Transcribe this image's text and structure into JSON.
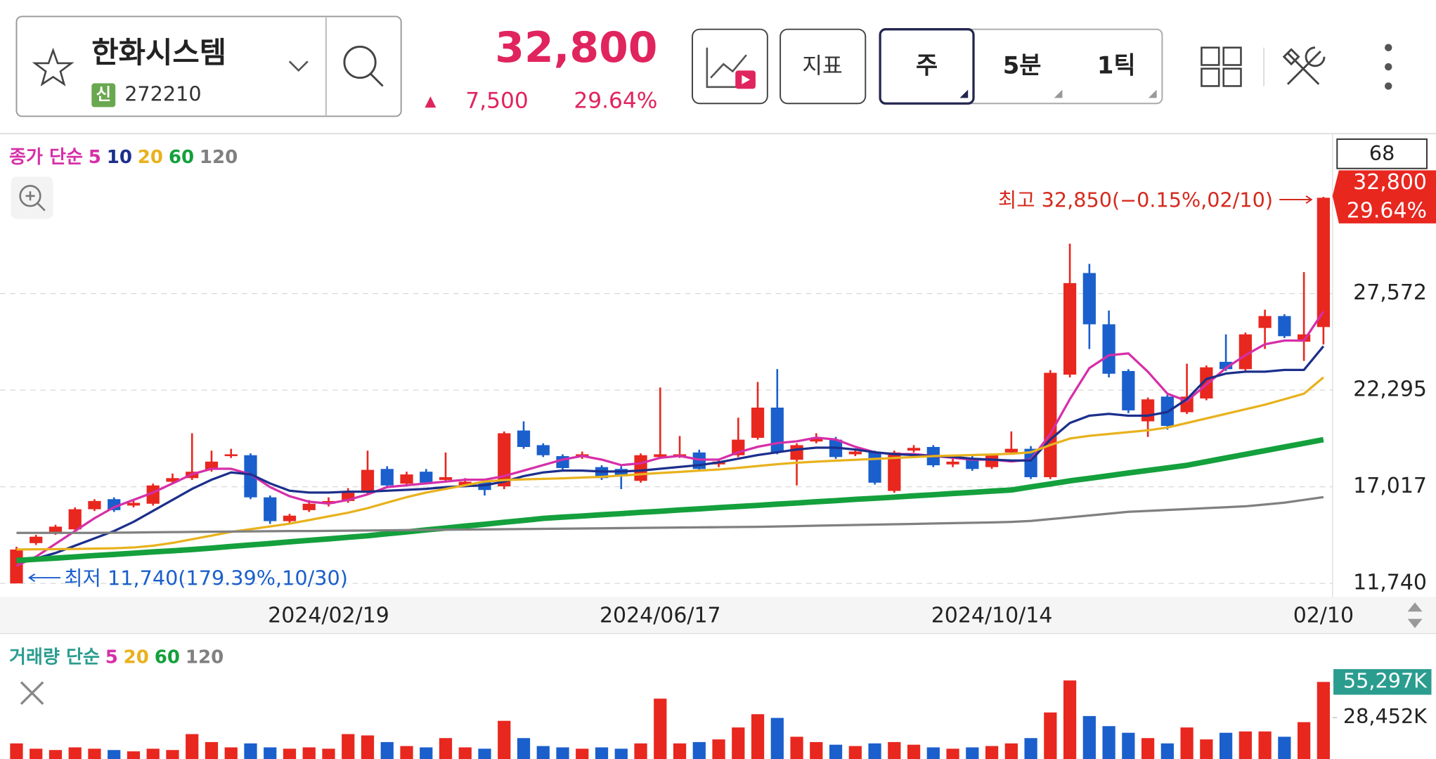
{
  "header": {
    "stock_name": "한화시스템",
    "badge": "신",
    "code": "272210",
    "price": "32,800",
    "change_sign": "▲",
    "change": "7,500",
    "change_pct": "29.64%",
    "buttons": {
      "indicator": "지표",
      "week": "주",
      "min5": "5분",
      "tick1": "1틱"
    }
  },
  "chart_data": [
    {
      "type": "candlestick",
      "legend_title": "종가 단순",
      "count_label": 68,
      "annotations": {
        "high": "최고 32,850(−0.15%,02/10)",
        "low": "최저 11,740(179.39%,10/30)",
        "last_price": "32,800",
        "last_pct": "29.64%"
      },
      "up_color": "#e8271f",
      "down_color": "#1a5fcc",
      "categories": [
        null,
        null,
        null,
        null,
        null,
        null,
        null,
        null,
        null,
        null,
        null,
        null,
        null,
        null,
        null,
        null,
        "2024/02/19",
        null,
        null,
        null,
        null,
        null,
        null,
        null,
        null,
        null,
        null,
        null,
        null,
        null,
        null,
        null,
        null,
        "2024/06/17",
        null,
        null,
        null,
        null,
        null,
        null,
        null,
        null,
        null,
        null,
        null,
        null,
        null,
        null,
        null,
        null,
        "2024/10/14",
        null,
        null,
        null,
        null,
        null,
        null,
        null,
        null,
        null,
        null,
        null,
        null,
        null,
        null,
        null,
        null,
        "02/10"
      ],
      "open": [
        11740,
        13940,
        14490,
        14690,
        15790,
        16340,
        15990,
        16090,
        17290,
        17490,
        17940,
        18690,
        18740,
        16440,
        15140,
        15740,
        16090,
        16240,
        16690,
        17990,
        17190,
        17840,
        17390,
        17090,
        17290,
        17040,
        20090,
        19290,
        18690,
        18640,
        18090,
        17990,
        17340,
        18640,
        18690,
        18890,
        18240,
        18740,
        19690,
        21340,
        18490,
        19490,
        19590,
        18790,
        18890,
        16790,
        18990,
        19190,
        18240,
        18590,
        18090,
        18890,
        19090,
        17540,
        23140,
        28690,
        25890,
        23340,
        20590,
        21940,
        21090,
        21840,
        23840,
        23440,
        25690,
        26340,
        24940,
        25740
      ],
      "high": [
        13740,
        14390,
        14940,
        15890,
        16340,
        16440,
        16240,
        17190,
        17740,
        19940,
        18990,
        19090,
        18840,
        16540,
        15540,
        16290,
        16440,
        16940,
        18990,
        18140,
        17840,
        17990,
        18890,
        17490,
        17390,
        20040,
        20590,
        19390,
        18790,
        18940,
        18190,
        18140,
        18840,
        22440,
        19790,
        19040,
        18540,
        20790,
        22740,
        23440,
        19390,
        19940,
        19740,
        19090,
        18990,
        18990,
        19290,
        19290,
        18540,
        18690,
        18840,
        20040,
        19240,
        23390,
        30290,
        29190,
        26640,
        23440,
        21890,
        22040,
        23740,
        23640,
        25340,
        25440,
        26690,
        26440,
        28740,
        32850
      ],
      "low": [
        11740,
        13840,
        14390,
        14490,
        15690,
        15640,
        15890,
        15990,
        17190,
        17390,
        17840,
        18590,
        16340,
        14990,
        14990,
        15640,
        15940,
        16140,
        16590,
        16940,
        17090,
        17140,
        17240,
        16990,
        16540,
        16890,
        19090,
        18640,
        17940,
        18540,
        17390,
        16890,
        17240,
        18540,
        18590,
        17890,
        18090,
        18640,
        19590,
        18790,
        17090,
        19390,
        18540,
        18690,
        17140,
        16690,
        18890,
        18090,
        18090,
        17890,
        17990,
        18790,
        17440,
        17440,
        22990,
        24540,
        22990,
        21040,
        19740,
        20140,
        20990,
        21740,
        23340,
        23240,
        24540,
        25140,
        23890,
        24790
      ],
      "close": [
        13590,
        14290,
        14840,
        15790,
        16240,
        15740,
        16140,
        17090,
        17490,
        17840,
        18390,
        18790,
        16440,
        15140,
        15440,
        16090,
        16240,
        16690,
        17940,
        17090,
        17690,
        17240,
        17540,
        17290,
        16840,
        19940,
        19190,
        18740,
        18040,
        18790,
        17490,
        17590,
        18740,
        18790,
        18790,
        17990,
        18390,
        19590,
        21340,
        18890,
        19290,
        19690,
        18640,
        18940,
        17240,
        18890,
        19140,
        18190,
        18390,
        17990,
        18740,
        19090,
        17540,
        23240,
        28140,
        25890,
        23190,
        21190,
        21790,
        20340,
        21940,
        23540,
        23440,
        25340,
        26340,
        25240,
        25340,
        32800
      ],
      "ylim": [
        11000,
        36100
      ],
      "yticks": [
        {
          "value": 11740,
          "label": "11,740"
        },
        {
          "value": 17017,
          "label": "17,017"
        },
        {
          "value": 22295,
          "label": "22,295"
        },
        {
          "value": 27572,
          "label": "27,572"
        }
      ],
      "grid": true,
      "series": [
        {
          "name": "5",
          "color": "#d62fa8",
          "width": 2.5,
          "values": [
            12700,
            13200,
            13900,
            14600,
            15300,
            15900,
            16300,
            16700,
            17200,
            17700,
            18000,
            18000,
            17700,
            17000,
            16500,
            16200,
            16100,
            16300,
            16600,
            17000,
            17100,
            17200,
            17300,
            17400,
            17400,
            17600,
            17900,
            18200,
            18500,
            18700,
            18500,
            18200,
            18300,
            18600,
            18700,
            18500,
            18500,
            18900,
            19200,
            19400,
            19500,
            19700,
            19600,
            19200,
            18900,
            18800,
            18800,
            18700,
            18600,
            18500,
            18500,
            18400,
            18500,
            19900,
            21800,
            23500,
            24200,
            24300,
            23300,
            22100,
            21700,
            22600,
            23500,
            24200,
            24800,
            25000,
            25000,
            26590
          ]
        },
        {
          "name": "10",
          "color": "#1c2f8c",
          "width": 2.5,
          "values": [
            13000,
            13100,
            13400,
            13800,
            14200,
            14600,
            15100,
            15700,
            16300,
            16900,
            17400,
            17800,
            17700,
            17200,
            16800,
            16700,
            16700,
            16750,
            16750,
            16800,
            16850,
            16900,
            17000,
            17050,
            17100,
            17300,
            17600,
            17800,
            17900,
            17900,
            17850,
            17850,
            17900,
            18000,
            18100,
            18200,
            18350,
            18550,
            18750,
            18900,
            19050,
            19150,
            19150,
            19050,
            18900,
            18800,
            18750,
            18700,
            18650,
            18550,
            18500,
            18450,
            18450,
            19600,
            20500,
            20900,
            21000,
            20900,
            20900,
            21100,
            21800,
            22900,
            23200,
            23300,
            23300,
            23400,
            23400,
            24690
          ]
        },
        {
          "name": "20",
          "color": "#e8b21e",
          "width": 2.5,
          "values": [
            13590,
            13600,
            13610,
            13620,
            13640,
            13660,
            13700,
            13800,
            13950,
            14150,
            14350,
            14550,
            14700,
            14850,
            15000,
            15200,
            15400,
            15600,
            15850,
            16150,
            16450,
            16700,
            16900,
            17100,
            17300,
            17380,
            17420,
            17450,
            17480,
            17520,
            17560,
            17630,
            17700,
            17770,
            17830,
            17900,
            17960,
            18050,
            18150,
            18250,
            18330,
            18390,
            18440,
            18490,
            18540,
            18590,
            18640,
            18690,
            18720,
            18750,
            18780,
            18820,
            18900,
            19300,
            19650,
            19800,
            19900,
            20000,
            20100,
            20250,
            20500,
            20750,
            21000,
            21250,
            21500,
            21800,
            22100,
            22990
          ]
        },
        {
          "name": "60",
          "color": "#14a03c",
          "width": 6,
          "values": [
            12990,
            13060,
            13120,
            13190,
            13260,
            13320,
            13390,
            13460,
            13520,
            13590,
            13670,
            13760,
            13840,
            13920,
            14010,
            14090,
            14170,
            14260,
            14340,
            14450,
            14550,
            14660,
            14760,
            14870,
            14970,
            15080,
            15180,
            15290,
            15360,
            15420,
            15490,
            15550,
            15620,
            15680,
            15750,
            15810,
            15880,
            15940,
            16000,
            16070,
            16130,
            16200,
            16260,
            16330,
            16390,
            16450,
            16520,
            16580,
            16650,
            16710,
            16780,
            16840,
            17010,
            17170,
            17340,
            17480,
            17620,
            17770,
            17910,
            18050,
            18190,
            18390,
            18590,
            18790,
            18990,
            19190,
            19390,
            19590
          ]
        },
        {
          "name": "120",
          "color": "#808080",
          "width": 2.5,
          "values": [
            14500,
            14500,
            14500,
            14500,
            14500,
            14510,
            14520,
            14530,
            14540,
            14550,
            14560,
            14570,
            14580,
            14590,
            14600,
            14600,
            14610,
            14620,
            14630,
            14640,
            14650,
            14660,
            14670,
            14680,
            14690,
            14700,
            14710,
            14720,
            14730,
            14740,
            14750,
            14760,
            14770,
            14780,
            14790,
            14800,
            14810,
            14820,
            14830,
            14850,
            14870,
            14890,
            14910,
            14930,
            14950,
            14970,
            14990,
            15010,
            15030,
            15050,
            15070,
            15100,
            15150,
            15250,
            15350,
            15450,
            15550,
            15650,
            15700,
            15750,
            15800,
            15850,
            15900,
            15950,
            16050,
            16150,
            16300,
            16450
          ]
        }
      ]
    },
    {
      "type": "bar",
      "legend_title": "거래량 단순",
      "legend_title_color": "#2a9d8f",
      "legend": [
        {
          "name": "5",
          "color": "#d62fa8"
        },
        {
          "name": "20",
          "color": "#e8b21e"
        },
        {
          "name": "60",
          "color": "#14a03c"
        },
        {
          "name": "120",
          "color": "#808080"
        }
      ],
      "values": [
        9000,
        5000,
        4000,
        6000,
        5000,
        4000,
        3000,
        5000,
        4000,
        16000,
        10000,
        6000,
        9000,
        6000,
        5000,
        6000,
        5000,
        16000,
        15000,
        10000,
        7000,
        6000,
        13000,
        6000,
        5000,
        26000,
        13000,
        7000,
        6000,
        5000,
        6000,
        5000,
        9000,
        42700,
        9000,
        10000,
        12000,
        21000,
        31000,
        28200,
        14000,
        10000,
        8000,
        7000,
        9000,
        10000,
        8000,
        6000,
        5000,
        6000,
        7000,
        9000,
        13000,
        32300,
        56400,
        29600,
        22000,
        17000,
        13000,
        9000,
        21000,
        12000,
        17000,
        18000,
        18000,
        14000,
        25000,
        55297
      ],
      "ylim": [
        0,
        60000
      ],
      "yticks": [
        {
          "value": 55297,
          "label": "55,297K"
        },
        {
          "value": 28452,
          "label": "28,452K"
        }
      ],
      "last_tag_color": "#2a9d8f"
    }
  ]
}
